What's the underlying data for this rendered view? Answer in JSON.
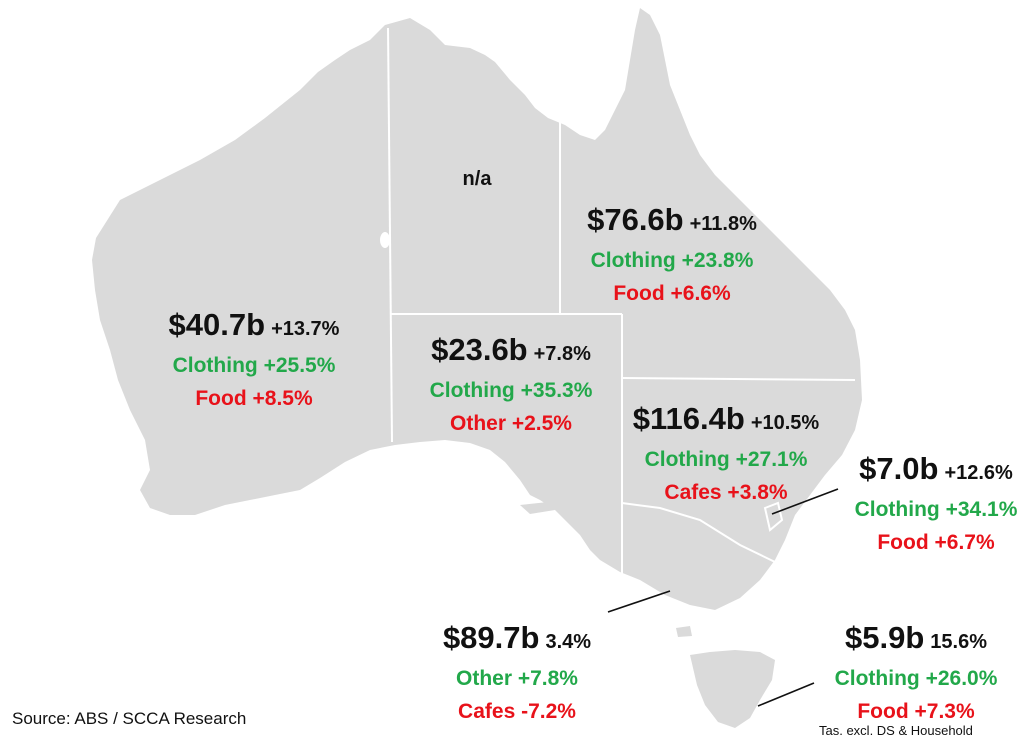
{
  "colors": {
    "land": "#dadada",
    "border": "#ffffff",
    "positive": "#22a84a",
    "negative": "#e8121a",
    "text": "#111111"
  },
  "regions": {
    "nt": {
      "na": "n/a"
    },
    "qld": {
      "total": "$76.6b",
      "growth": "+11.8%",
      "top": "Clothing +23.8%",
      "bottom": "Food +6.6%"
    },
    "wa": {
      "total": "$40.7b",
      "growth": "+13.7%",
      "top": "Clothing +25.5%",
      "bottom": "Food +8.5%"
    },
    "sa": {
      "total": "$23.6b",
      "growth": "+7.8%",
      "top": "Clothing +35.3%",
      "bottom": "Other +2.5%"
    },
    "nsw": {
      "total": "$116.4b",
      "growth": "+10.5%",
      "top": "Clothing +27.1%",
      "bottom": "Cafes +3.8%"
    },
    "act": {
      "total": "$7.0b",
      "growth": "+12.6%",
      "top": "Clothing +34.1%",
      "bottom": "Food +6.7%"
    },
    "vic": {
      "total": "$89.7b",
      "growth": "3.4%",
      "top": "Other +7.8%",
      "bottom": "Cafes -7.2%"
    },
    "tas": {
      "total": "$5.9b",
      "growth": "15.6%",
      "top": "Clothing +26.0%",
      "bottom": "Food +7.3%"
    }
  },
  "source": "Source: ABS / SCCA Research",
  "footnote": "Tas. excl. DS & Household"
}
